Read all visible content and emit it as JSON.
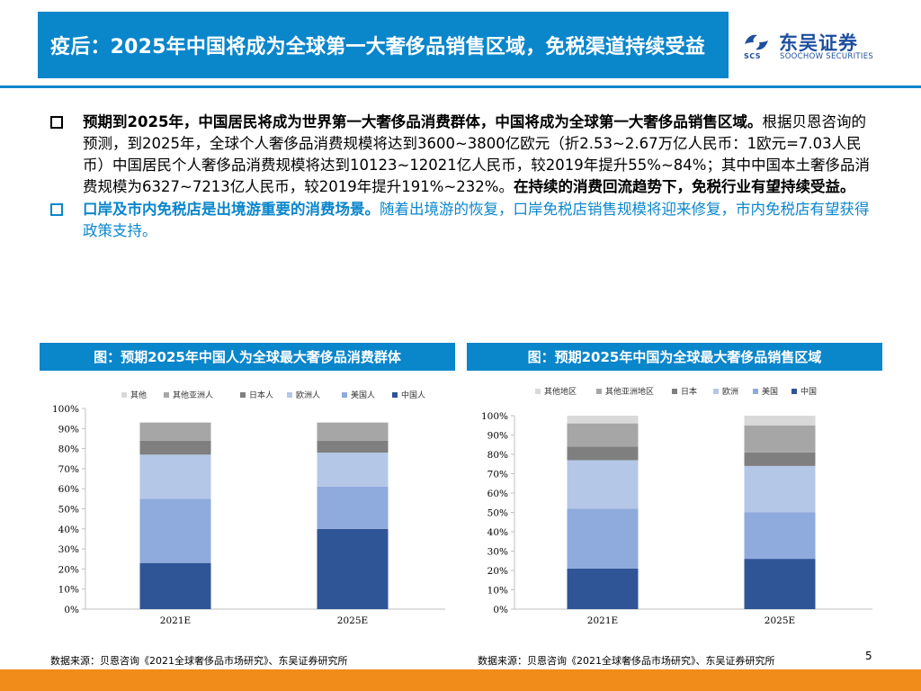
{
  "header": {
    "title": "疫后：2025年中国将成为全球第一大奢侈品销售区域，免税渠道持续受益",
    "logo_cn": "东吴证券",
    "logo_en": "SOOCHOW SECURITIES",
    "logo_abbr": "SCS"
  },
  "bullets": [
    {
      "bold_lead": "预期到2025年，中国居民将成为世界第一大奢侈品消费群体，中国将成为全球第一大奢侈品销售区域。",
      "body": "根据贝恩咨询的预测，到2025年，全球个人奢侈品消费规模将达到3600~3800亿欧元（折2.53~2.67万亿人民币：1欧元=7.03人民币）中国居民个人奢侈品消费规模将达到10123~12021亿人民币，较2019年提升55%~84%；其中中国本土奢侈品消费规模为6327~7213亿人民币，较2019年提升191%~232%。",
      "bold_tail": "在持续的消费回流趋势下，免税行业有望持续受益。"
    },
    {
      "bold_lead": "口岸及市内免税店是出境游重要的消费场景。",
      "body": "随着出境游的恢复，口岸免税店销售规模将迎来修复，市内免税店有望获得政策支持。",
      "bold_tail": ""
    }
  ],
  "figures": [
    {
      "title": "图：预期2025年中国人为全球最大奢侈品消费群体",
      "source": "数据来源：贝恩咨询《2021全球奢侈品市场研究》、东吴证券研究所"
    },
    {
      "title": "图：预期2025年中国为全球最大奢侈品销售区域",
      "source": "数据来源：贝恩咨询《2021全球奢侈品市场研究》、东吴证券研究所"
    }
  ],
  "page_number": "5",
  "colors": {
    "brand_blue": "#0a86cb",
    "footer_orange": "#f18c1a"
  },
  "chart_data": [
    {
      "type": "bar",
      "stacked": true,
      "categories": [
        "2021E",
        "2025E"
      ],
      "series": [
        {
          "name": "中国人",
          "color": "#2f5597",
          "values": [
            23,
            40
          ]
        },
        {
          "name": "美国人",
          "color": "#8faadc",
          "values": [
            32,
            21
          ]
        },
        {
          "name": "欧洲人",
          "color": "#b4c7e7",
          "values": [
            22,
            17
          ]
        },
        {
          "name": "日本人",
          "color": "#7f7f7f",
          "values": [
            7,
            6
          ]
        },
        {
          "name": "其他亚洲人",
          "color": "#a6a6a6",
          "values": [
            9,
            9
          ]
        },
        {
          "name": "其他",
          "color": "#d9d9d9",
          "values": [
            0,
            0
          ]
        }
      ],
      "ylim": [
        0,
        100
      ],
      "yticks": [
        "0%",
        "10%",
        "20%",
        "30%",
        "40%",
        "50%",
        "60%",
        "70%",
        "80%",
        "90%",
        "100%"
      ],
      "legend_position": "top",
      "grid": false
    },
    {
      "type": "bar",
      "stacked": true,
      "categories": [
        "2021E",
        "2025E"
      ],
      "series": [
        {
          "name": "中国",
          "color": "#2f5597",
          "values": [
            21,
            26
          ]
        },
        {
          "name": "美国",
          "color": "#8faadc",
          "values": [
            31,
            24
          ]
        },
        {
          "name": "欧洲",
          "color": "#b4c7e7",
          "values": [
            25,
            24
          ]
        },
        {
          "name": "日本",
          "color": "#7f7f7f",
          "values": [
            7,
            7
          ]
        },
        {
          "name": "其他亚洲地区",
          "color": "#a6a6a6",
          "values": [
            12,
            14
          ]
        },
        {
          "name": "其他地区",
          "color": "#d9d9d9",
          "values": [
            4,
            5
          ]
        }
      ],
      "ylim": [
        0,
        100
      ],
      "yticks": [
        "0%",
        "10%",
        "20%",
        "30%",
        "40%",
        "50%",
        "60%",
        "70%",
        "80%",
        "90%",
        "100%"
      ],
      "legend_position": "top",
      "grid": false
    }
  ]
}
